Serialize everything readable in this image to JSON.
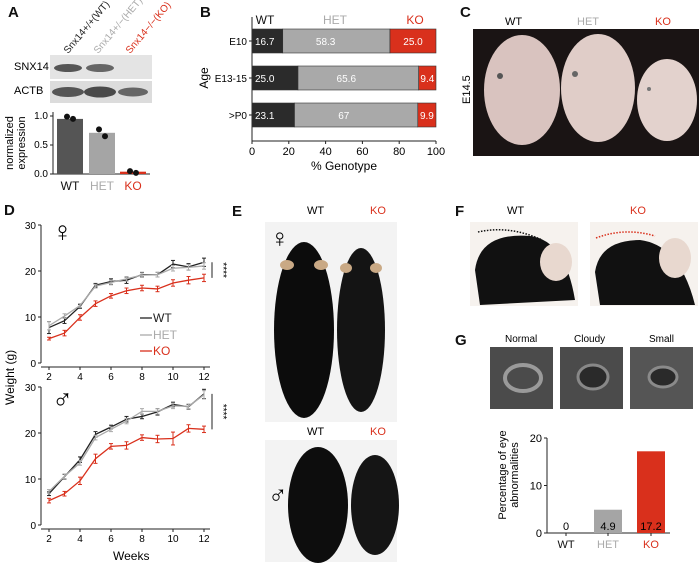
{
  "colors": {
    "wt": "#2b2b2b",
    "het": "#a8a8a8",
    "ko": "#d9301c"
  },
  "panels": {
    "a": "A",
    "b": "B",
    "c": "C",
    "d": "D",
    "e": "E",
    "f": "F",
    "g": "G"
  },
  "panel_a": {
    "lanes": [
      "Snx14+/+(WT)",
      "Snx14+/−(HET)",
      "Snx14−/−(KO)"
    ],
    "blot_rows": [
      "SNX14",
      "ACTB"
    ],
    "chart_data": {
      "type": "bar",
      "categories": [
        "WT",
        "HET",
        "KO"
      ],
      "values": [
        0.95,
        0.71,
        0.04
      ],
      "points": [
        [
          0.99,
          0.95
        ],
        [
          0.77,
          0.65
        ],
        [
          0.05,
          0.02
        ]
      ],
      "ylabel": "normalized expression",
      "yticks": [
        "0.0",
        "0.5",
        "1.0"
      ],
      "ylim": [
        0,
        1.05
      ]
    }
  },
  "panel_b": {
    "chart_data": {
      "type": "bar",
      "orientation": "horizontal",
      "stacked": true,
      "categories": [
        "E10",
        "E13-15",
        ">P0"
      ],
      "series": [
        {
          "name": "WT",
          "values": [
            16.7,
            25.0,
            23.1
          ],
          "labels": [
            "16.7",
            "25.0",
            "23.1"
          ]
        },
        {
          "name": "HET",
          "values": [
            58.3,
            65.6,
            67
          ],
          "labels": [
            "58.3",
            "65.6",
            "67"
          ]
        },
        {
          "name": "KO",
          "values": [
            25.0,
            9.4,
            9.9
          ],
          "labels": [
            "25.0",
            "9.4",
            "9.9"
          ]
        }
      ],
      "xlabel": "% Genotype",
      "ylabel": "Age",
      "xlim": [
        0,
        100
      ],
      "xticks": [
        "0",
        "20",
        "40",
        "60",
        "80",
        "100"
      ],
      "legend": "top"
    }
  },
  "panel_c": {
    "headers": [
      "WT",
      "HET",
      "KO"
    ],
    "stage": "E14.5"
  },
  "panel_d": {
    "chart_data": [
      {
        "type": "line",
        "sex": "♀",
        "x": [
          2,
          3,
          4,
          5,
          6,
          7,
          8,
          9,
          10,
          11,
          12
        ],
        "ylim": [
          0,
          30
        ],
        "yticks": [
          "0",
          "10",
          "20",
          "30"
        ],
        "xticks": [
          "2",
          "4",
          "6",
          "8",
          "10",
          "12"
        ],
        "significance": "****",
        "legend": "bottom-right",
        "series": [
          {
            "name": "WT",
            "values": [
              7.7,
              9.2,
              12.3,
              16.9,
              17.7,
              18.0,
              19.2,
              19.2,
              21.5,
              20.9,
              21.9
            ],
            "err": [
              1.3,
              0.6,
              0.4,
              0.4,
              0.6,
              0.7,
              0.5,
              0.5,
              0.8,
              0.7,
              0.9
            ]
          },
          {
            "name": "HET",
            "values": [
              8.1,
              10.2,
              12.5,
              16.7,
              17.5,
              18.3,
              19.1,
              19.2,
              20.6,
              20.8,
              21.1
            ],
            "err": [
              0.9,
              0.5,
              0.4,
              0.4,
              0.5,
              0.5,
              0.5,
              0.5,
              0.6,
              0.6,
              0.7
            ]
          },
          {
            "name": "KO",
            "values": [
              5.3,
              6.5,
              9.9,
              12.9,
              14.6,
              15.7,
              16.3,
              16.1,
              17.4,
              18.0,
              18.5
            ],
            "err": [
              0.3,
              0.6,
              0.6,
              0.6,
              0.5,
              0.6,
              0.6,
              0.6,
              0.7,
              0.8,
              0.8
            ]
          }
        ]
      },
      {
        "type": "line",
        "sex": "♂",
        "x": [
          2,
          3,
          4,
          5,
          6,
          7,
          8,
          9,
          10,
          11,
          12
        ],
        "ylim": [
          0,
          30
        ],
        "yticks": [
          "0",
          "10",
          "20",
          "30"
        ],
        "xticks": [
          "2",
          "4",
          "6",
          "8",
          "10",
          "12"
        ],
        "significance": "****",
        "xlabel": "Weeks",
        "series": [
          {
            "name": "WT",
            "values": [
              6.8,
              10.5,
              14.2,
              19.7,
              21.3,
              23.0,
              23.6,
              24.6,
              26.2,
              25.7,
              28.5
            ],
            "err": [
              0.4,
              0.5,
              0.6,
              0.6,
              0.4,
              0.6,
              0.5,
              0.7,
              0.5,
              0.5,
              1.0
            ]
          },
          {
            "name": "HET",
            "values": [
              7.3,
              10.6,
              13.5,
              19.0,
              20.8,
              22.6,
              24.7,
              24.7,
              25.9,
              25.8,
              28.3
            ],
            "err": [
              0.4,
              0.5,
              0.5,
              0.5,
              0.5,
              0.6,
              0.6,
              0.6,
              0.6,
              0.5,
              0.9
            ]
          },
          {
            "name": "KO",
            "values": [
              5.3,
              6.8,
              9.6,
              14.4,
              17.1,
              17.3,
              19.0,
              18.7,
              18.8,
              21.0,
              20.8
            ],
            "err": [
              0.5,
              0.5,
              0.8,
              1.0,
              0.6,
              0.8,
              0.6,
              0.8,
              1.4,
              0.8,
              0.7
            ]
          }
        ]
      }
    ],
    "ylabel": "Weight (g)",
    "xlabel": "Weeks"
  },
  "panel_e": {
    "headers": [
      "WT",
      "KO"
    ],
    "female": "♀",
    "male": "♂"
  },
  "panel_f": {
    "headers": [
      "WT",
      "KO"
    ]
  },
  "panel_g": {
    "eye_labels": [
      "Normal",
      "Cloudy",
      "Small"
    ],
    "chart_data": {
      "type": "bar",
      "categories": [
        "WT",
        "HET",
        "KO"
      ],
      "values": [
        0,
        4.9,
        17.2
      ],
      "labels": [
        "0",
        "4.9",
        "17.2"
      ],
      "ylabel": "Percentage of eye abnormalities",
      "ylim": [
        0,
        20
      ],
      "yticks": [
        "0",
        "10",
        "20"
      ]
    }
  }
}
